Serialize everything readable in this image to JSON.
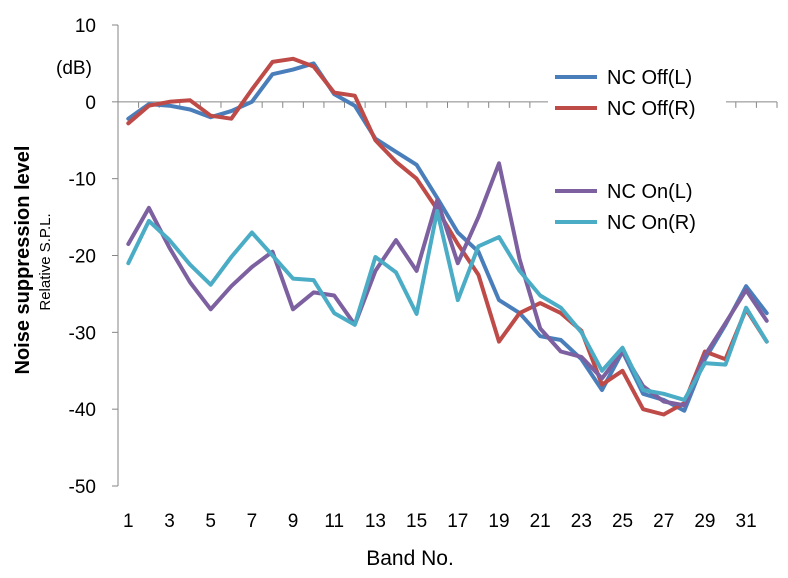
{
  "chart_data": {
    "type": "line",
    "title": "",
    "xlabel": "Band No.",
    "ylabel": "Noise suppression level",
    "ylabel_secondary": "Relative S.P.L.",
    "y_unit": "(dB)",
    "ylim": [
      -50,
      10
    ],
    "yticks": [
      10,
      0,
      -10,
      -20,
      -30,
      -40,
      -50
    ],
    "xlim": [
      1,
      32
    ],
    "xticks": [
      1,
      3,
      5,
      7,
      9,
      11,
      13,
      15,
      17,
      19,
      21,
      23,
      25,
      27,
      29,
      31
    ],
    "grid": false,
    "legend_placement": "right",
    "x": [
      1,
      2,
      3,
      4,
      5,
      6,
      7,
      8,
      9,
      10,
      11,
      12,
      13,
      14,
      15,
      16,
      17,
      18,
      19,
      20,
      21,
      22,
      23,
      24,
      25,
      26,
      27,
      28,
      29,
      30,
      31,
      32
    ],
    "series": [
      {
        "name": "NC Off(L)",
        "color": "#4a7ebb",
        "values": [
          -2.2,
          -0.3,
          -0.5,
          -1,
          -2,
          -1.2,
          0,
          3.6,
          4.2,
          5,
          1,
          -0.5,
          -4.8,
          -6.5,
          -8.2,
          -12.5,
          -17,
          -19.5,
          -25.8,
          -27.5,
          -30.5,
          -31,
          -33.5,
          -37.5,
          -32.5,
          -38,
          -38.8,
          -40.2,
          -33.5,
          -29,
          -24,
          -27.5
        ]
      },
      {
        "name": "NC Off(R)",
        "color": "#be4b48",
        "values": [
          -2.8,
          -0.5,
          0,
          0.2,
          -1.8,
          -2.2,
          1.6,
          5.2,
          5.6,
          4.6,
          1.2,
          0.8,
          -5,
          -7.8,
          -10,
          -14,
          -18.5,
          -22.5,
          -31.2,
          -27.5,
          -26.2,
          -27.5,
          -29.8,
          -36.8,
          -35,
          -40,
          -40.7,
          -39.2,
          -32.5,
          -33.5,
          -27,
          -31.2
        ]
      },
      {
        "name": "NC On(L)",
        "color": "#7d60a0",
        "values": [
          -18.5,
          -13.8,
          -19,
          -23.5,
          -27,
          -24,
          -21.5,
          -19.5,
          -27,
          -24.8,
          -25.2,
          -29,
          -22,
          -18,
          -22,
          -12.8,
          -21,
          -15,
          -8,
          -20.5,
          -29.5,
          -32.5,
          -33.2,
          -36,
          -32.5,
          -37,
          -39,
          -39.5,
          -33,
          -28.8,
          -24.5,
          -28.5
        ]
      },
      {
        "name": "NC On(R)",
        "color": "#4bacc6",
        "values": [
          -21,
          -15.5,
          -18,
          -21.2,
          -23.8,
          -20.2,
          -17,
          -20,
          -23,
          -23.2,
          -27.5,
          -29,
          -20.2,
          -22.2,
          -27.6,
          -14.2,
          -25.8,
          -18.8,
          -17.6,
          -22,
          -25.2,
          -26.8,
          -30,
          -35,
          -32,
          -37.5,
          -38,
          -38.8,
          -34,
          -34.2,
          -26.8,
          -31.2
        ]
      }
    ]
  }
}
